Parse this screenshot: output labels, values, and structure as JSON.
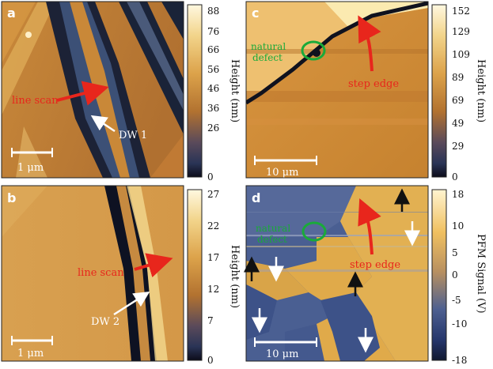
{
  "panels": [
    {
      "id": "a",
      "label": "a",
      "colorbar": {
        "type": "height",
        "ticks": [
          "88",
          "76",
          "66",
          "56",
          "46",
          "36",
          "26",
          "0"
        ],
        "label": "Height (nm)"
      },
      "scalebar": "1 μm",
      "annotations": {
        "line_scan": "line scan",
        "domain_wall": "DW 1"
      }
    },
    {
      "id": "b",
      "label": "b",
      "colorbar": {
        "type": "height",
        "ticks": [
          "27",
          "22",
          "17",
          "12",
          "7",
          "0"
        ],
        "label": "Height (nm)"
      },
      "scalebar": "1 μm",
      "annotations": {
        "line_scan": "line scan",
        "domain_wall": "DW 2"
      }
    },
    {
      "id": "c",
      "label": "c",
      "colorbar": {
        "type": "height",
        "ticks": [
          "152",
          "129",
          "109",
          "89",
          "69",
          "49",
          "29",
          "0"
        ],
        "label": "Height (nm)"
      },
      "scalebar": "10 μm",
      "annotations": {
        "defect_line1": "natural",
        "defect_line2": "defect",
        "step_edge": "step edge"
      }
    },
    {
      "id": "d",
      "label": "d",
      "colorbar": {
        "type": "pfm",
        "ticks": [
          "18",
          "10",
          "5",
          "0",
          "-5",
          "-10",
          "-18"
        ],
        "label": "PFM Signal (V)"
      },
      "scalebar": "10 μm",
      "annotations": {
        "defect_line1": "natural",
        "defect_line2": "defect",
        "step_edge": "step edge"
      }
    }
  ],
  "colors": {
    "height_map": [
      "#1a1a2e",
      "#3a4a6e",
      "#b06a20",
      "#d89a3a",
      "#f0d890",
      "#fff8e0"
    ],
    "pfm_map": [
      "#23346a",
      "#4a5f92",
      "#b89a60",
      "#e8b050",
      "#f5d890"
    ],
    "arrow_red": "#e8261c",
    "defect_green": "#1aaa3a"
  }
}
